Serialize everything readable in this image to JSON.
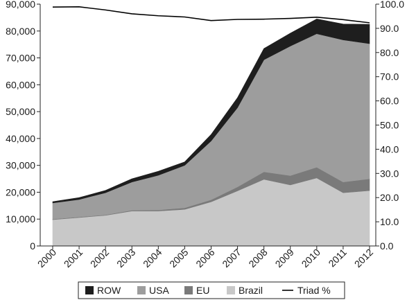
{
  "chart_data": {
    "type": "area",
    "stacked": true,
    "categories": [
      "2000",
      "2001",
      "2002",
      "2003",
      "2004",
      "2005",
      "2006",
      "2007",
      "2008",
      "2009",
      "2010",
      "2011",
      "2012"
    ],
    "left_axis": {
      "ylim": [
        0,
        90000
      ],
      "ticks": [
        "0",
        "10,000",
        "20,000",
        "30,000",
        "40,000",
        "50,000",
        "60,000",
        "70,000",
        "80,000",
        "90,000"
      ]
    },
    "right_axis": {
      "ylim": [
        0,
        100
      ],
      "ticks": [
        "0.0",
        "10.0",
        "20.0",
        "30.0",
        "40.0",
        "50.0",
        "60.0",
        "70.0",
        "80.0",
        "90.0",
        "100.0"
      ]
    },
    "series": [
      {
        "name": "Brazil",
        "color": "#c8c8c8",
        "axis": "left",
        "values": [
          9800,
          10600,
          11400,
          13000,
          13000,
          13600,
          16400,
          20500,
          24800,
          22700,
          25300,
          19800,
          20600
        ]
      },
      {
        "name": "EU",
        "color": "#7a7a7a",
        "axis": "left",
        "values": [
          200,
          200,
          200,
          300,
          400,
          600,
          800,
          1500,
          2800,
          3500,
          4000,
          4000,
          4400
        ]
      },
      {
        "name": "USA",
        "color": "#9d9d9d",
        "axis": "left",
        "values": [
          6000,
          6500,
          8200,
          10500,
          12900,
          15800,
          21900,
          29500,
          41700,
          48200,
          49700,
          52900,
          50300
        ]
      },
      {
        "name": "ROW",
        "color": "#1e1e1e",
        "axis": "left",
        "values": [
          500,
          700,
          900,
          1200,
          1500,
          1300,
          2400,
          3700,
          4200,
          4800,
          5500,
          5900,
          7200
        ]
      },
      {
        "name": "Triad %",
        "color": "#000000",
        "axis": "right",
        "kind": "line",
        "values": [
          98.8,
          98.9,
          97.6,
          96.0,
          95.2,
          94.7,
          93.2,
          93.7,
          93.8,
          94.1,
          94.6,
          93.6,
          92.3
        ]
      }
    ],
    "legend": {
      "position": "bottom",
      "entries": [
        {
          "label": "ROW",
          "color": "#1e1e1e",
          "kind": "box"
        },
        {
          "label": "USA",
          "color": "#9d9d9d",
          "kind": "box"
        },
        {
          "label": "EU",
          "color": "#7a7a7a",
          "kind": "box"
        },
        {
          "label": "Brazil",
          "color": "#c8c8c8",
          "kind": "box"
        },
        {
          "label": "Triad %",
          "color": "#000000",
          "kind": "line"
        }
      ]
    }
  }
}
